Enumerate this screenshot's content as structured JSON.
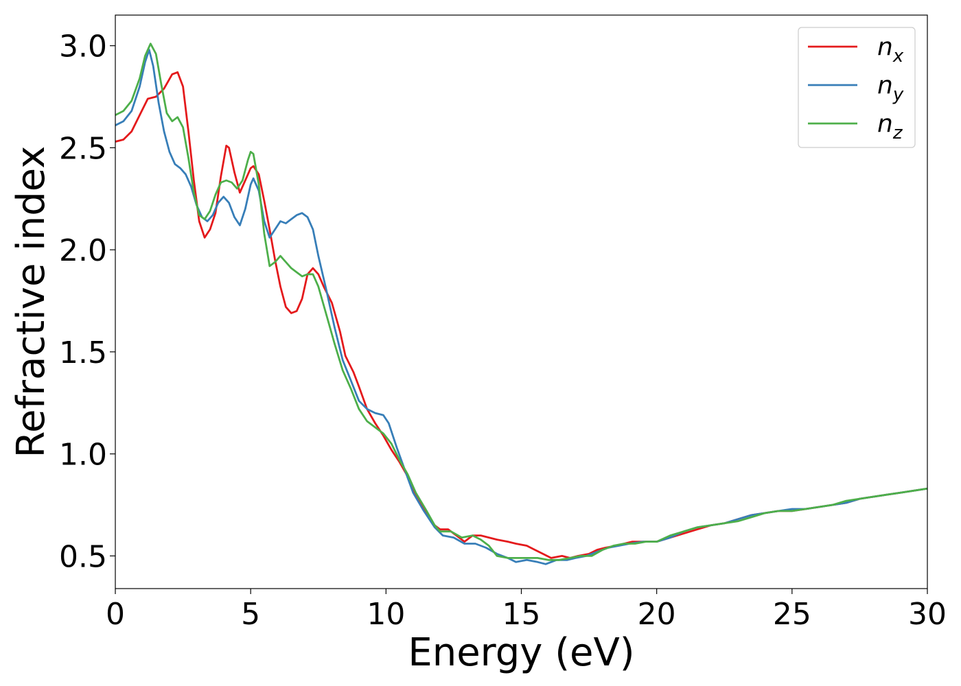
{
  "chart_data": {
    "type": "line",
    "xlabel": "Energy (eV)",
    "ylabel": "Refractive index",
    "xlim": [
      0,
      30
    ],
    "ylim": [
      0.34,
      3.15
    ],
    "xticks": [
      0,
      5,
      10,
      15,
      20,
      25,
      30
    ],
    "xtick_labels": [
      "0",
      "5",
      "10",
      "15",
      "20",
      "25",
      "30"
    ],
    "yticks": [
      0.5,
      1.0,
      1.5,
      2.0,
      2.5,
      3.0
    ],
    "ytick_labels": [
      "0.5",
      "1.0",
      "1.5",
      "2.0",
      "2.5",
      "3.0"
    ],
    "grid": false,
    "legend_position": "top-right",
    "series": [
      {
        "name": "n_x",
        "legend_base": "n",
        "legend_sub": "x",
        "color": "#e41a1c",
        "points": [
          [
            0,
            2.53
          ],
          [
            0.3,
            2.54
          ],
          [
            0.6,
            2.58
          ],
          [
            0.9,
            2.66
          ],
          [
            1.2,
            2.74
          ],
          [
            1.5,
            2.75
          ],
          [
            1.8,
            2.79
          ],
          [
            2.1,
            2.86
          ],
          [
            2.3,
            2.87
          ],
          [
            2.5,
            2.8
          ],
          [
            2.7,
            2.58
          ],
          [
            2.9,
            2.34
          ],
          [
            3.1,
            2.14
          ],
          [
            3.3,
            2.06
          ],
          [
            3.5,
            2.1
          ],
          [
            3.7,
            2.18
          ],
          [
            3.9,
            2.36
          ],
          [
            4.1,
            2.51
          ],
          [
            4.2,
            2.5
          ],
          [
            4.4,
            2.38
          ],
          [
            4.6,
            2.28
          ],
          [
            4.8,
            2.34
          ],
          [
            5.0,
            2.4
          ],
          [
            5.1,
            2.41
          ],
          [
            5.3,
            2.37
          ],
          [
            5.5,
            2.24
          ],
          [
            5.7,
            2.1
          ],
          [
            5.9,
            1.95
          ],
          [
            6.1,
            1.82
          ],
          [
            6.3,
            1.72
          ],
          [
            6.5,
            1.69
          ],
          [
            6.7,
            1.7
          ],
          [
            6.9,
            1.76
          ],
          [
            7.1,
            1.88
          ],
          [
            7.3,
            1.91
          ],
          [
            7.5,
            1.88
          ],
          [
            7.7,
            1.82
          ],
          [
            8.0,
            1.74
          ],
          [
            8.3,
            1.6
          ],
          [
            8.5,
            1.48
          ],
          [
            8.8,
            1.4
          ],
          [
            9.0,
            1.33
          ],
          [
            9.3,
            1.22
          ],
          [
            9.6,
            1.15
          ],
          [
            9.9,
            1.09
          ],
          [
            10.2,
            1.02
          ],
          [
            10.5,
            0.96
          ],
          [
            10.8,
            0.89
          ],
          [
            11.1,
            0.8
          ],
          [
            11.5,
            0.71
          ],
          [
            11.8,
            0.65
          ],
          [
            12.0,
            0.63
          ],
          [
            12.3,
            0.63
          ],
          [
            12.6,
            0.6
          ],
          [
            12.9,
            0.57
          ],
          [
            13.2,
            0.6
          ],
          [
            13.5,
            0.6
          ],
          [
            13.8,
            0.59
          ],
          [
            14.1,
            0.58
          ],
          [
            14.5,
            0.57
          ],
          [
            14.8,
            0.56
          ],
          [
            15.2,
            0.55
          ],
          [
            15.5,
            0.53
          ],
          [
            15.8,
            0.51
          ],
          [
            16.1,
            0.49
          ],
          [
            16.5,
            0.5
          ],
          [
            16.8,
            0.49
          ],
          [
            17.1,
            0.5
          ],
          [
            17.5,
            0.51
          ],
          [
            17.8,
            0.53
          ],
          [
            18.1,
            0.54
          ],
          [
            18.5,
            0.55
          ],
          [
            18.8,
            0.56
          ],
          [
            19.1,
            0.57
          ],
          [
            19.5,
            0.57
          ],
          [
            20.0,
            0.57
          ],
          [
            20.5,
            0.59
          ],
          [
            21.0,
            0.61
          ],
          [
            21.5,
            0.63
          ],
          [
            22.0,
            0.65
          ],
          [
            22.5,
            0.66
          ],
          [
            23.0,
            0.68
          ],
          [
            23.5,
            0.7
          ],
          [
            24.0,
            0.71
          ],
          [
            24.5,
            0.72
          ],
          [
            25.0,
            0.72
          ],
          [
            25.5,
            0.73
          ],
          [
            26.0,
            0.74
          ],
          [
            26.5,
            0.75
          ],
          [
            27.0,
            0.76
          ],
          [
            27.5,
            0.78
          ],
          [
            28.0,
            0.79
          ],
          [
            28.5,
            0.8
          ],
          [
            29.0,
            0.81
          ],
          [
            29.5,
            0.82
          ],
          [
            30.0,
            0.83
          ]
        ]
      },
      {
        "name": "n_y",
        "legend_base": "n",
        "legend_sub": "y",
        "color": "#377eb8",
        "points": [
          [
            0,
            2.61
          ],
          [
            0.3,
            2.63
          ],
          [
            0.6,
            2.68
          ],
          [
            0.9,
            2.8
          ],
          [
            1.1,
            2.92
          ],
          [
            1.25,
            2.98
          ],
          [
            1.4,
            2.9
          ],
          [
            1.6,
            2.72
          ],
          [
            1.8,
            2.58
          ],
          [
            2.0,
            2.48
          ],
          [
            2.2,
            2.42
          ],
          [
            2.4,
            2.4
          ],
          [
            2.6,
            2.37
          ],
          [
            2.8,
            2.31
          ],
          [
            3.0,
            2.22
          ],
          [
            3.2,
            2.16
          ],
          [
            3.4,
            2.14
          ],
          [
            3.6,
            2.17
          ],
          [
            3.8,
            2.23
          ],
          [
            4.0,
            2.26
          ],
          [
            4.2,
            2.23
          ],
          [
            4.4,
            2.16
          ],
          [
            4.6,
            2.12
          ],
          [
            4.8,
            2.2
          ],
          [
            5.0,
            2.32
          ],
          [
            5.1,
            2.35
          ],
          [
            5.3,
            2.29
          ],
          [
            5.5,
            2.14
          ],
          [
            5.7,
            2.06
          ],
          [
            5.9,
            2.1
          ],
          [
            6.1,
            2.14
          ],
          [
            6.3,
            2.13
          ],
          [
            6.5,
            2.15
          ],
          [
            6.7,
            2.17
          ],
          [
            6.9,
            2.18
          ],
          [
            7.1,
            2.16
          ],
          [
            7.3,
            2.1
          ],
          [
            7.5,
            1.97
          ],
          [
            7.8,
            1.8
          ],
          [
            8.1,
            1.62
          ],
          [
            8.4,
            1.46
          ],
          [
            8.7,
            1.36
          ],
          [
            9.0,
            1.26
          ],
          [
            9.3,
            1.22
          ],
          [
            9.6,
            1.2
          ],
          [
            9.9,
            1.19
          ],
          [
            10.1,
            1.15
          ],
          [
            10.4,
            1.03
          ],
          [
            10.7,
            0.92
          ],
          [
            11.0,
            0.81
          ],
          [
            11.4,
            0.72
          ],
          [
            11.8,
            0.64
          ],
          [
            12.1,
            0.6
          ],
          [
            12.5,
            0.59
          ],
          [
            12.9,
            0.56
          ],
          [
            13.3,
            0.56
          ],
          [
            13.7,
            0.54
          ],
          [
            14.1,
            0.51
          ],
          [
            14.5,
            0.49
          ],
          [
            14.8,
            0.47
          ],
          [
            15.2,
            0.48
          ],
          [
            15.6,
            0.47
          ],
          [
            15.9,
            0.46
          ],
          [
            16.3,
            0.48
          ],
          [
            16.7,
            0.48
          ],
          [
            17.0,
            0.49
          ],
          [
            17.4,
            0.5
          ],
          [
            17.8,
            0.52
          ],
          [
            18.2,
            0.54
          ],
          [
            18.6,
            0.55
          ],
          [
            19.0,
            0.56
          ],
          [
            19.5,
            0.57
          ],
          [
            20.0,
            0.57
          ],
          [
            20.5,
            0.59
          ],
          [
            21.0,
            0.62
          ],
          [
            21.5,
            0.64
          ],
          [
            22.0,
            0.65
          ],
          [
            22.5,
            0.66
          ],
          [
            23.0,
            0.68
          ],
          [
            23.5,
            0.7
          ],
          [
            24.0,
            0.71
          ],
          [
            24.5,
            0.72
          ],
          [
            25.0,
            0.73
          ],
          [
            25.5,
            0.73
          ],
          [
            26.0,
            0.74
          ],
          [
            26.5,
            0.75
          ],
          [
            27.0,
            0.76
          ],
          [
            27.5,
            0.78
          ],
          [
            28.0,
            0.79
          ],
          [
            28.5,
            0.8
          ],
          [
            29.0,
            0.81
          ],
          [
            29.5,
            0.82
          ],
          [
            30.0,
            0.83
          ]
        ]
      },
      {
        "name": "n_z",
        "legend_base": "n",
        "legend_sub": "z",
        "color": "#4daf4a",
        "points": [
          [
            0,
            2.66
          ],
          [
            0.3,
            2.68
          ],
          [
            0.6,
            2.73
          ],
          [
            0.9,
            2.84
          ],
          [
            1.1,
            2.95
          ],
          [
            1.3,
            3.01
          ],
          [
            1.5,
            2.96
          ],
          [
            1.7,
            2.81
          ],
          [
            1.9,
            2.67
          ],
          [
            2.1,
            2.63
          ],
          [
            2.3,
            2.65
          ],
          [
            2.5,
            2.6
          ],
          [
            2.7,
            2.45
          ],
          [
            2.9,
            2.28
          ],
          [
            3.1,
            2.17
          ],
          [
            3.3,
            2.15
          ],
          [
            3.5,
            2.19
          ],
          [
            3.7,
            2.27
          ],
          [
            3.9,
            2.33
          ],
          [
            4.1,
            2.34
          ],
          [
            4.3,
            2.33
          ],
          [
            4.5,
            2.3
          ],
          [
            4.7,
            2.34
          ],
          [
            4.9,
            2.44
          ],
          [
            5.0,
            2.48
          ],
          [
            5.1,
            2.47
          ],
          [
            5.3,
            2.32
          ],
          [
            5.5,
            2.08
          ],
          [
            5.7,
            1.92
          ],
          [
            5.9,
            1.94
          ],
          [
            6.1,
            1.97
          ],
          [
            6.3,
            1.94
          ],
          [
            6.5,
            1.91
          ],
          [
            6.7,
            1.89
          ],
          [
            6.9,
            1.87
          ],
          [
            7.1,
            1.88
          ],
          [
            7.3,
            1.88
          ],
          [
            7.5,
            1.82
          ],
          [
            7.8,
            1.68
          ],
          [
            8.1,
            1.54
          ],
          [
            8.4,
            1.41
          ],
          [
            8.7,
            1.32
          ],
          [
            9.0,
            1.22
          ],
          [
            9.3,
            1.16
          ],
          [
            9.6,
            1.13
          ],
          [
            9.9,
            1.1
          ],
          [
            10.2,
            1.05
          ],
          [
            10.5,
            0.97
          ],
          [
            10.8,
            0.9
          ],
          [
            11.1,
            0.81
          ],
          [
            11.5,
            0.72
          ],
          [
            11.8,
            0.65
          ],
          [
            12.0,
            0.62
          ],
          [
            12.4,
            0.62
          ],
          [
            12.8,
            0.59
          ],
          [
            13.2,
            0.6
          ],
          [
            13.5,
            0.58
          ],
          [
            13.8,
            0.55
          ],
          [
            14.1,
            0.5
          ],
          [
            14.5,
            0.49
          ],
          [
            14.8,
            0.49
          ],
          [
            15.2,
            0.49
          ],
          [
            15.6,
            0.49
          ],
          [
            16.0,
            0.48
          ],
          [
            16.4,
            0.48
          ],
          [
            16.8,
            0.49
          ],
          [
            17.2,
            0.5
          ],
          [
            17.6,
            0.5
          ],
          [
            18.0,
            0.53
          ],
          [
            18.4,
            0.55
          ],
          [
            18.8,
            0.56
          ],
          [
            19.2,
            0.56
          ],
          [
            19.6,
            0.57
          ],
          [
            20.0,
            0.57
          ],
          [
            20.5,
            0.6
          ],
          [
            21.0,
            0.62
          ],
          [
            21.5,
            0.64
          ],
          [
            22.0,
            0.65
          ],
          [
            22.5,
            0.66
          ],
          [
            23.0,
            0.67
          ],
          [
            23.5,
            0.69
          ],
          [
            24.0,
            0.71
          ],
          [
            24.5,
            0.72
          ],
          [
            25.0,
            0.72
          ],
          [
            25.5,
            0.73
          ],
          [
            26.0,
            0.74
          ],
          [
            26.5,
            0.75
          ],
          [
            27.0,
            0.77
          ],
          [
            27.5,
            0.78
          ],
          [
            28.0,
            0.79
          ],
          [
            28.5,
            0.8
          ],
          [
            29.0,
            0.81
          ],
          [
            29.5,
            0.82
          ],
          [
            30.0,
            0.83
          ]
        ]
      }
    ]
  }
}
